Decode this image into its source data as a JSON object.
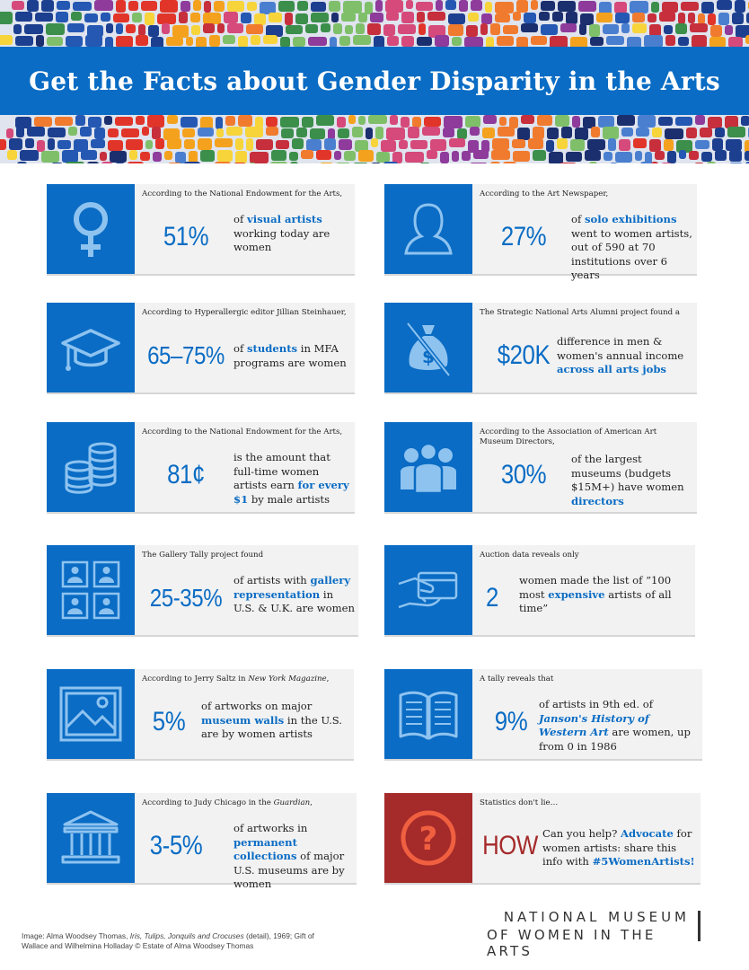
{
  "header": {
    "title": "Get the Facts about Gender Disparity in the Arts"
  },
  "colors": {
    "blue": "#0a6cc4",
    "red": "#a52a2a",
    "card_bg": "#f2f2f2"
  },
  "cards": [
    {
      "icon": "female-symbol-icon",
      "source": "According to the National Endowment for the Arts,",
      "stat": "51%",
      "desc_parts": [
        {
          "t": "of ",
          "s": ""
        },
        {
          "t": "visual artists",
          "s": "hl"
        },
        {
          "t": " working today are women",
          "s": ""
        }
      ]
    },
    {
      "icon": "woman-silhouette-icon",
      "source": "According to the Art Newspaper,",
      "stat": "27%",
      "desc_parts": [
        {
          "t": "of ",
          "s": ""
        },
        {
          "t": "solo exhibitions",
          "s": "hl"
        },
        {
          "t": " went to women artists, out of 590 at 70 institutions over 6 years",
          "s": ""
        }
      ]
    },
    {
      "icon": "graduation-cap-icon",
      "source": "According  to Hyperallergic editor Jillian Steinhauer,",
      "stat": "65–75%",
      "desc_parts": [
        {
          "t": "of ",
          "s": ""
        },
        {
          "t": "students",
          "s": "hl"
        },
        {
          "t": " in MFA programs are women",
          "s": ""
        }
      ]
    },
    {
      "icon": "money-bag-crossed-icon",
      "source": "The Strategic National Arts Alumni project found a",
      "stat": "$20K",
      "desc_parts": [
        {
          "t": "difference in men & women's annual income ",
          "s": ""
        },
        {
          "t": "across all arts jobs",
          "s": "hl"
        }
      ]
    },
    {
      "icon": "coin-stacks-icon",
      "source": "According to the National Endowment for the Arts,",
      "stat": "81¢",
      "desc_parts": [
        {
          "t": "is the amount that full-time women artists earn ",
          "s": ""
        },
        {
          "t": "for every $1",
          "s": "hl"
        },
        {
          "t": " by male artists",
          "s": ""
        }
      ]
    },
    {
      "icon": "group-of-people-icon",
      "source": "According to the Association of American Art Museum Directors,",
      "stat": "30%",
      "desc_parts": [
        {
          "t": "of the largest museums (budgets $15M+) have women ",
          "s": ""
        },
        {
          "t": "directors",
          "s": "hl"
        }
      ]
    },
    {
      "icon": "portrait-frames-icon",
      "source": "The Gallery Tally project found",
      "stat": "25-35%",
      "desc_parts": [
        {
          "t": "of artists with ",
          "s": ""
        },
        {
          "t": "gallery representation",
          "s": "hl"
        },
        {
          "t": " in U.S. & U.K. are women",
          "s": ""
        }
      ]
    },
    {
      "icon": "hand-credit-card-icon",
      "source": "Auction data reveals only",
      "stat": "2",
      "desc_parts": [
        {
          "t": "women made the list of “100 most ",
          "s": ""
        },
        {
          "t": "expensive",
          "s": "hl"
        },
        {
          "t": " artists of all time”",
          "s": ""
        }
      ]
    },
    {
      "icon": "framed-landscape-icon",
      "source_parts": [
        {
          "t": "According to Jerry Saltz in  ",
          "s": ""
        },
        {
          "t": "New York Magazine",
          "s": "it"
        },
        {
          "t": ",",
          "s": ""
        }
      ],
      "stat": "5%",
      "desc_parts": [
        {
          "t": "of artworks on major ",
          "s": ""
        },
        {
          "t": "museum walls",
          "s": "hl"
        },
        {
          "t": " in the U.S. are by women artists",
          "s": ""
        }
      ]
    },
    {
      "icon": "open-book-icon",
      "source": "A tally reveals that",
      "stat": "9%",
      "desc_parts": [
        {
          "t": "of artists in 9th ed. of ",
          "s": ""
        },
        {
          "t": "Janson's History of Western Art",
          "s": "hl-i"
        },
        {
          "t": " are women, up from 0 in 1986",
          "s": ""
        }
      ]
    },
    {
      "icon": "museum-building-icon",
      "source_parts": [
        {
          "t": "According to Judy Chicago in the ",
          "s": ""
        },
        {
          "t": "Guardian",
          "s": "it"
        },
        {
          "t": ",",
          "s": ""
        }
      ],
      "stat": "3-5%",
      "desc_parts": [
        {
          "t": "of artworks in ",
          "s": ""
        },
        {
          "t": "permanent collections",
          "s": "hl"
        },
        {
          "t": " of major U.S. museums are by women",
          "s": ""
        }
      ]
    },
    {
      "icon": "question-mark-icon",
      "source": "Statistics don't lie…",
      "stat": "HOW",
      "desc_parts": [
        {
          "t": "Can you help? ",
          "s": ""
        },
        {
          "t": "Advocate",
          "s": "hl"
        },
        {
          "t": " for women artists: share this info with ",
          "s": ""
        },
        {
          "t": "#5WomenArtists!",
          "s": "hl"
        }
      ]
    }
  ],
  "footer": {
    "credit_parts": [
      {
        "t": "Image: Alma Woodsey Thomas, ",
        "s": ""
      },
      {
        "t": "Iris, Tulips, Jonquils and Crocuses",
        "s": "it"
      },
      {
        "t": " (detail), 1969; Gift of Wallace and Wilhelmina Holladay © Estate of Alma Woodsey Thomas",
        "s": ""
      }
    ],
    "logo_line1": "NATIONAL MUSEUM",
    "logo_line2": "OF WOMEN IN THE ARTS"
  }
}
